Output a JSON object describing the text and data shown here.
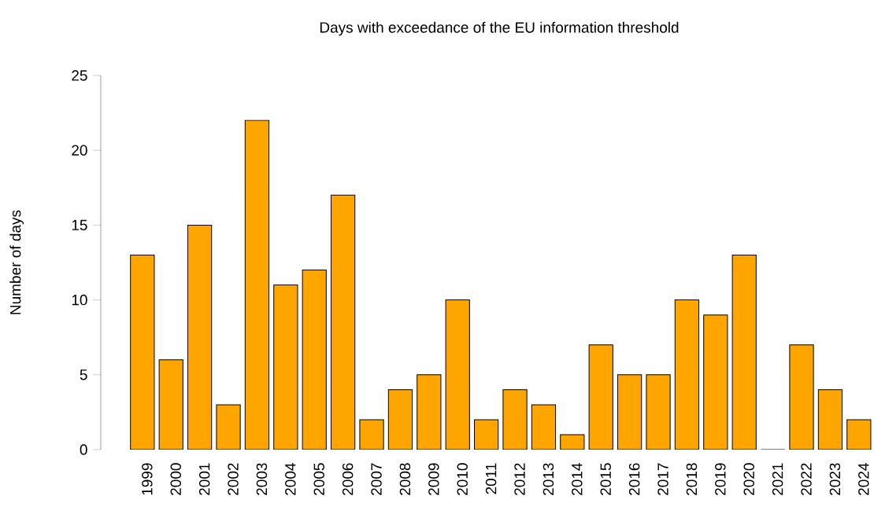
{
  "chart_data": {
    "type": "bar",
    "title": "Days with exceedance of the EU information threshold",
    "ylabel": "Number of days",
    "categories": [
      "1999",
      "2000",
      "2001",
      "2002",
      "2003",
      "2004",
      "2005",
      "2006",
      "2007",
      "2008",
      "2009",
      "2010",
      "2011",
      "2012",
      "2013",
      "2014",
      "2015",
      "2016",
      "2017",
      "2018",
      "2019",
      "2020",
      "2021",
      "2022",
      "2023",
      "2024"
    ],
    "values": [
      13,
      6,
      15,
      3,
      22,
      11,
      12,
      17,
      2,
      4,
      5,
      10,
      2,
      4,
      3,
      1,
      7,
      5,
      5,
      10,
      9,
      13,
      0,
      7,
      4,
      2
    ],
    "color": "#ffa500",
    "ylim": [
      0,
      25
    ],
    "yticks": [
      0,
      5,
      10,
      15,
      20,
      25
    ]
  }
}
